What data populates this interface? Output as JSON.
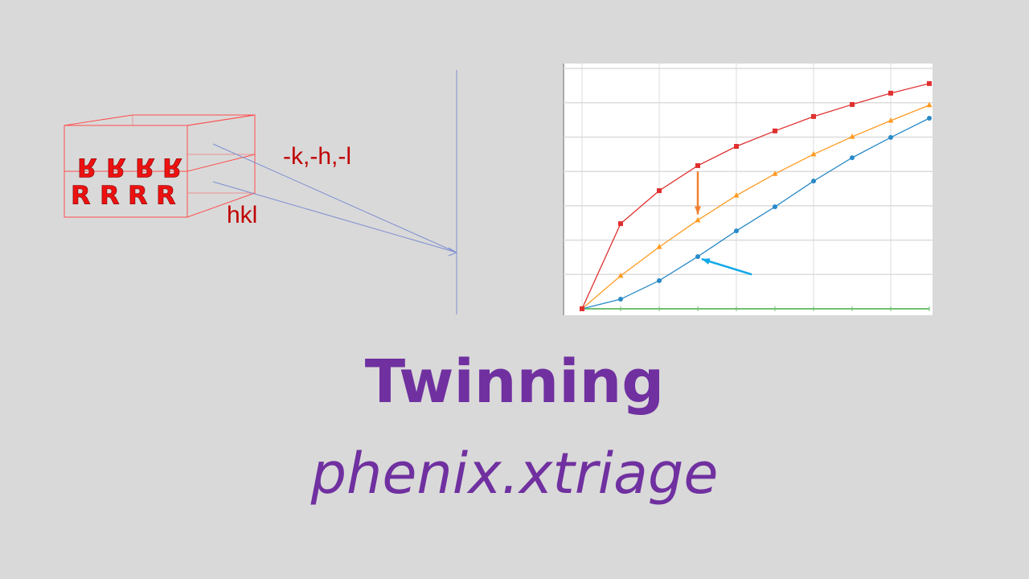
{
  "diagram": {
    "twin_label": "-k,-h,-l",
    "base_label": "hkl",
    "letter": "R",
    "colors": {
      "box": "#ff4d4d",
      "label": "#c00000",
      "ray": "#7f8fd0"
    }
  },
  "chart_data": {
    "type": "line",
    "title": "",
    "xlabel": "",
    "ylabel": "",
    "x": [
      0,
      1,
      2,
      3,
      4,
      5,
      6,
      7,
      8,
      9
    ],
    "xlim": [
      -0.5,
      9
    ],
    "ylim": [
      0,
      7
    ],
    "grid": true,
    "series": [
      {
        "color": "#e03030",
        "marker": "square",
        "values": [
          0,
          2.48,
          3.44,
          4.17,
          4.73,
          5.18,
          5.6,
          5.95,
          6.28,
          6.56
        ]
      },
      {
        "color": "#ff9a20",
        "marker": "triangle",
        "values": [
          0,
          0.96,
          1.8,
          2.58,
          3.3,
          3.93,
          4.5,
          5.01,
          5.48,
          5.93
        ]
      },
      {
        "color": "#2a8ac8",
        "marker": "circle",
        "values": [
          0,
          0.28,
          0.82,
          1.52,
          2.27,
          2.97,
          3.72,
          4.4,
          4.99,
          5.55
        ]
      },
      {
        "color": "#70c070",
        "marker": "none",
        "values": [
          0,
          0,
          0,
          0,
          0,
          0,
          0,
          0,
          0,
          0
        ]
      }
    ],
    "annotations": [
      {
        "type": "arrow",
        "color": "#f08030",
        "from": [
          3,
          4.0
        ],
        "to": [
          3,
          2.75
        ]
      },
      {
        "type": "arrow",
        "color": "#10a8e8",
        "from": [
          4.4,
          1.0
        ],
        "to": [
          3.1,
          1.45
        ]
      }
    ]
  },
  "slide": {
    "title": "Twinning",
    "subtitle": "phenix.xtriage",
    "title_color": "#7030a0"
  }
}
